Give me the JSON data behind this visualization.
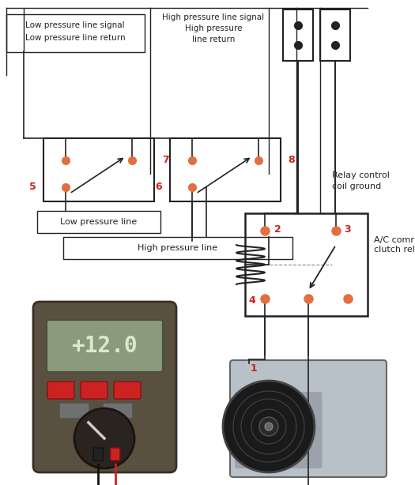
{
  "bg_color": "#ffffff",
  "red_color": "#cc2222",
  "orange_dot_color": "#e07040",
  "black_color": "#222222",
  "gray_color": "#888888",
  "relay_label": "A/C comrpessor\nclutch relay",
  "relay_control_label": "Relay control\ncoil ground",
  "low_pressure_signal_label1": "Low pressure line signal",
  "low_pressure_signal_label2": "Low pressure line return",
  "high_pressure_signal_label1": "High pressure line signal",
  "high_pressure_signal_label2": "High pressure",
  "high_pressure_signal_label3": "line return",
  "low_pressure_line_label": "Low pressure line",
  "high_pressure_line_label": "High pressure line",
  "figsize": [
    5.25,
    6.14
  ],
  "dpi": 100
}
